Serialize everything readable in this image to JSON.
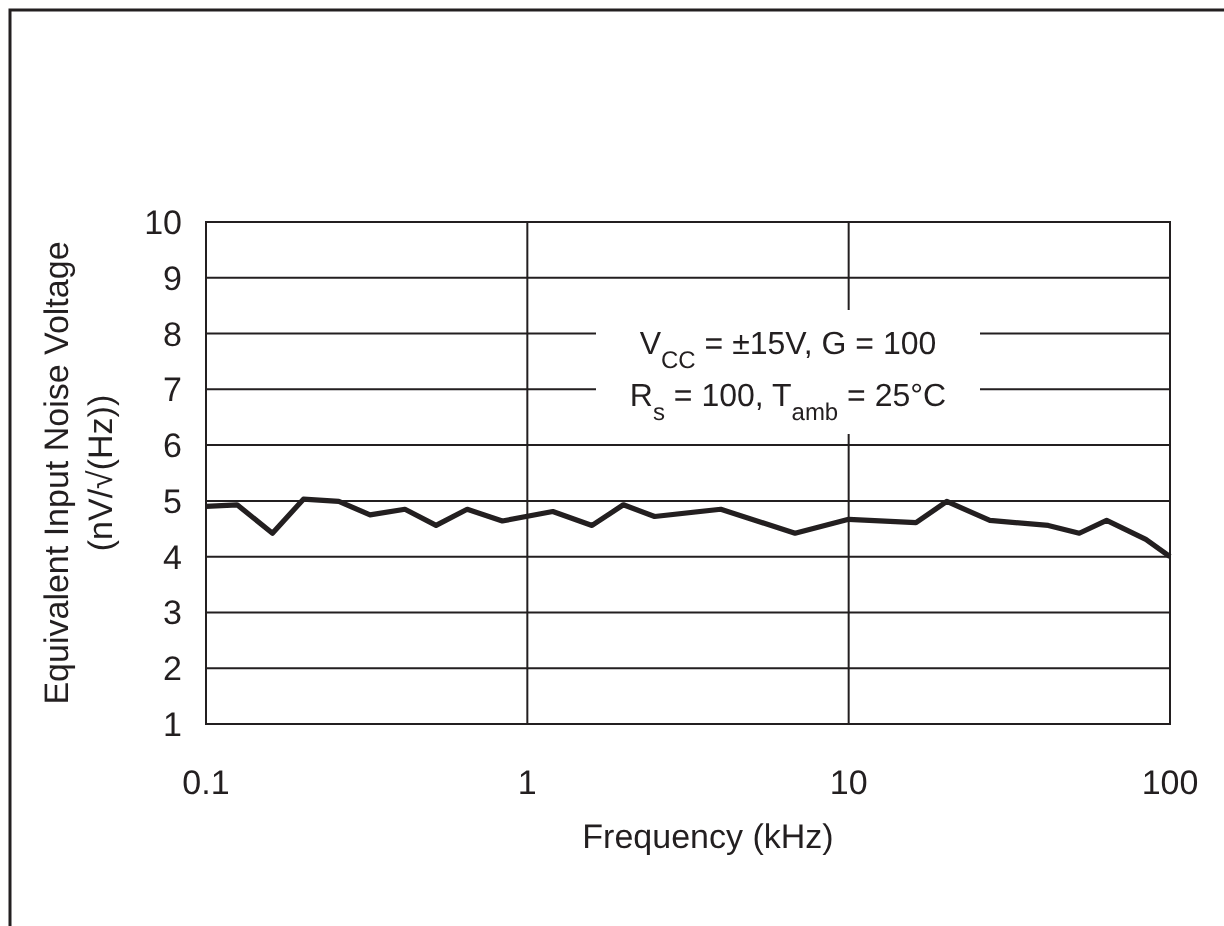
{
  "chart_data": {
    "type": "line",
    "xlabel": "Frequency (kHz)",
    "ylabel": "Equivalent Input Noise Voltage\n(nV/√(Hz))",
    "log": "x",
    "xlim": [
      0.1,
      100
    ],
    "xticks": [
      0.1,
      1,
      10,
      100
    ],
    "ylim": [
      1,
      10
    ],
    "yticks": [
      1,
      2,
      3,
      4,
      5,
      6,
      7,
      8,
      9,
      10
    ],
    "grid": true,
    "x": [
      0.1,
      0.125,
      0.161,
      0.201,
      0.259,
      0.324,
      0.416,
      0.52,
      0.65,
      0.836,
      1.2,
      1.59,
      1.99,
      2.49,
      4.0,
      6.81,
      10,
      16.2,
      20.2,
      27.5,
      41.8,
      52.2,
      63.5,
      84.1,
      100
    ],
    "series": [
      {
        "color": "#231f20",
        "values": [
          4.9,
          4.93,
          4.42,
          5.03,
          4.99,
          4.75,
          4.85,
          4.56,
          4.85,
          4.64,
          4.81,
          4.56,
          4.93,
          4.72,
          4.85,
          4.42,
          4.67,
          4.61,
          4.99,
          4.65,
          4.56,
          4.42,
          4.65,
          4.31,
          4.0
        ]
      }
    ],
    "annotations": [
      "V$_{CC}$ = ±15V, G = 100",
      "R$_{s}$ = 100, T$_{amb}$ = 25°C"
    ]
  }
}
